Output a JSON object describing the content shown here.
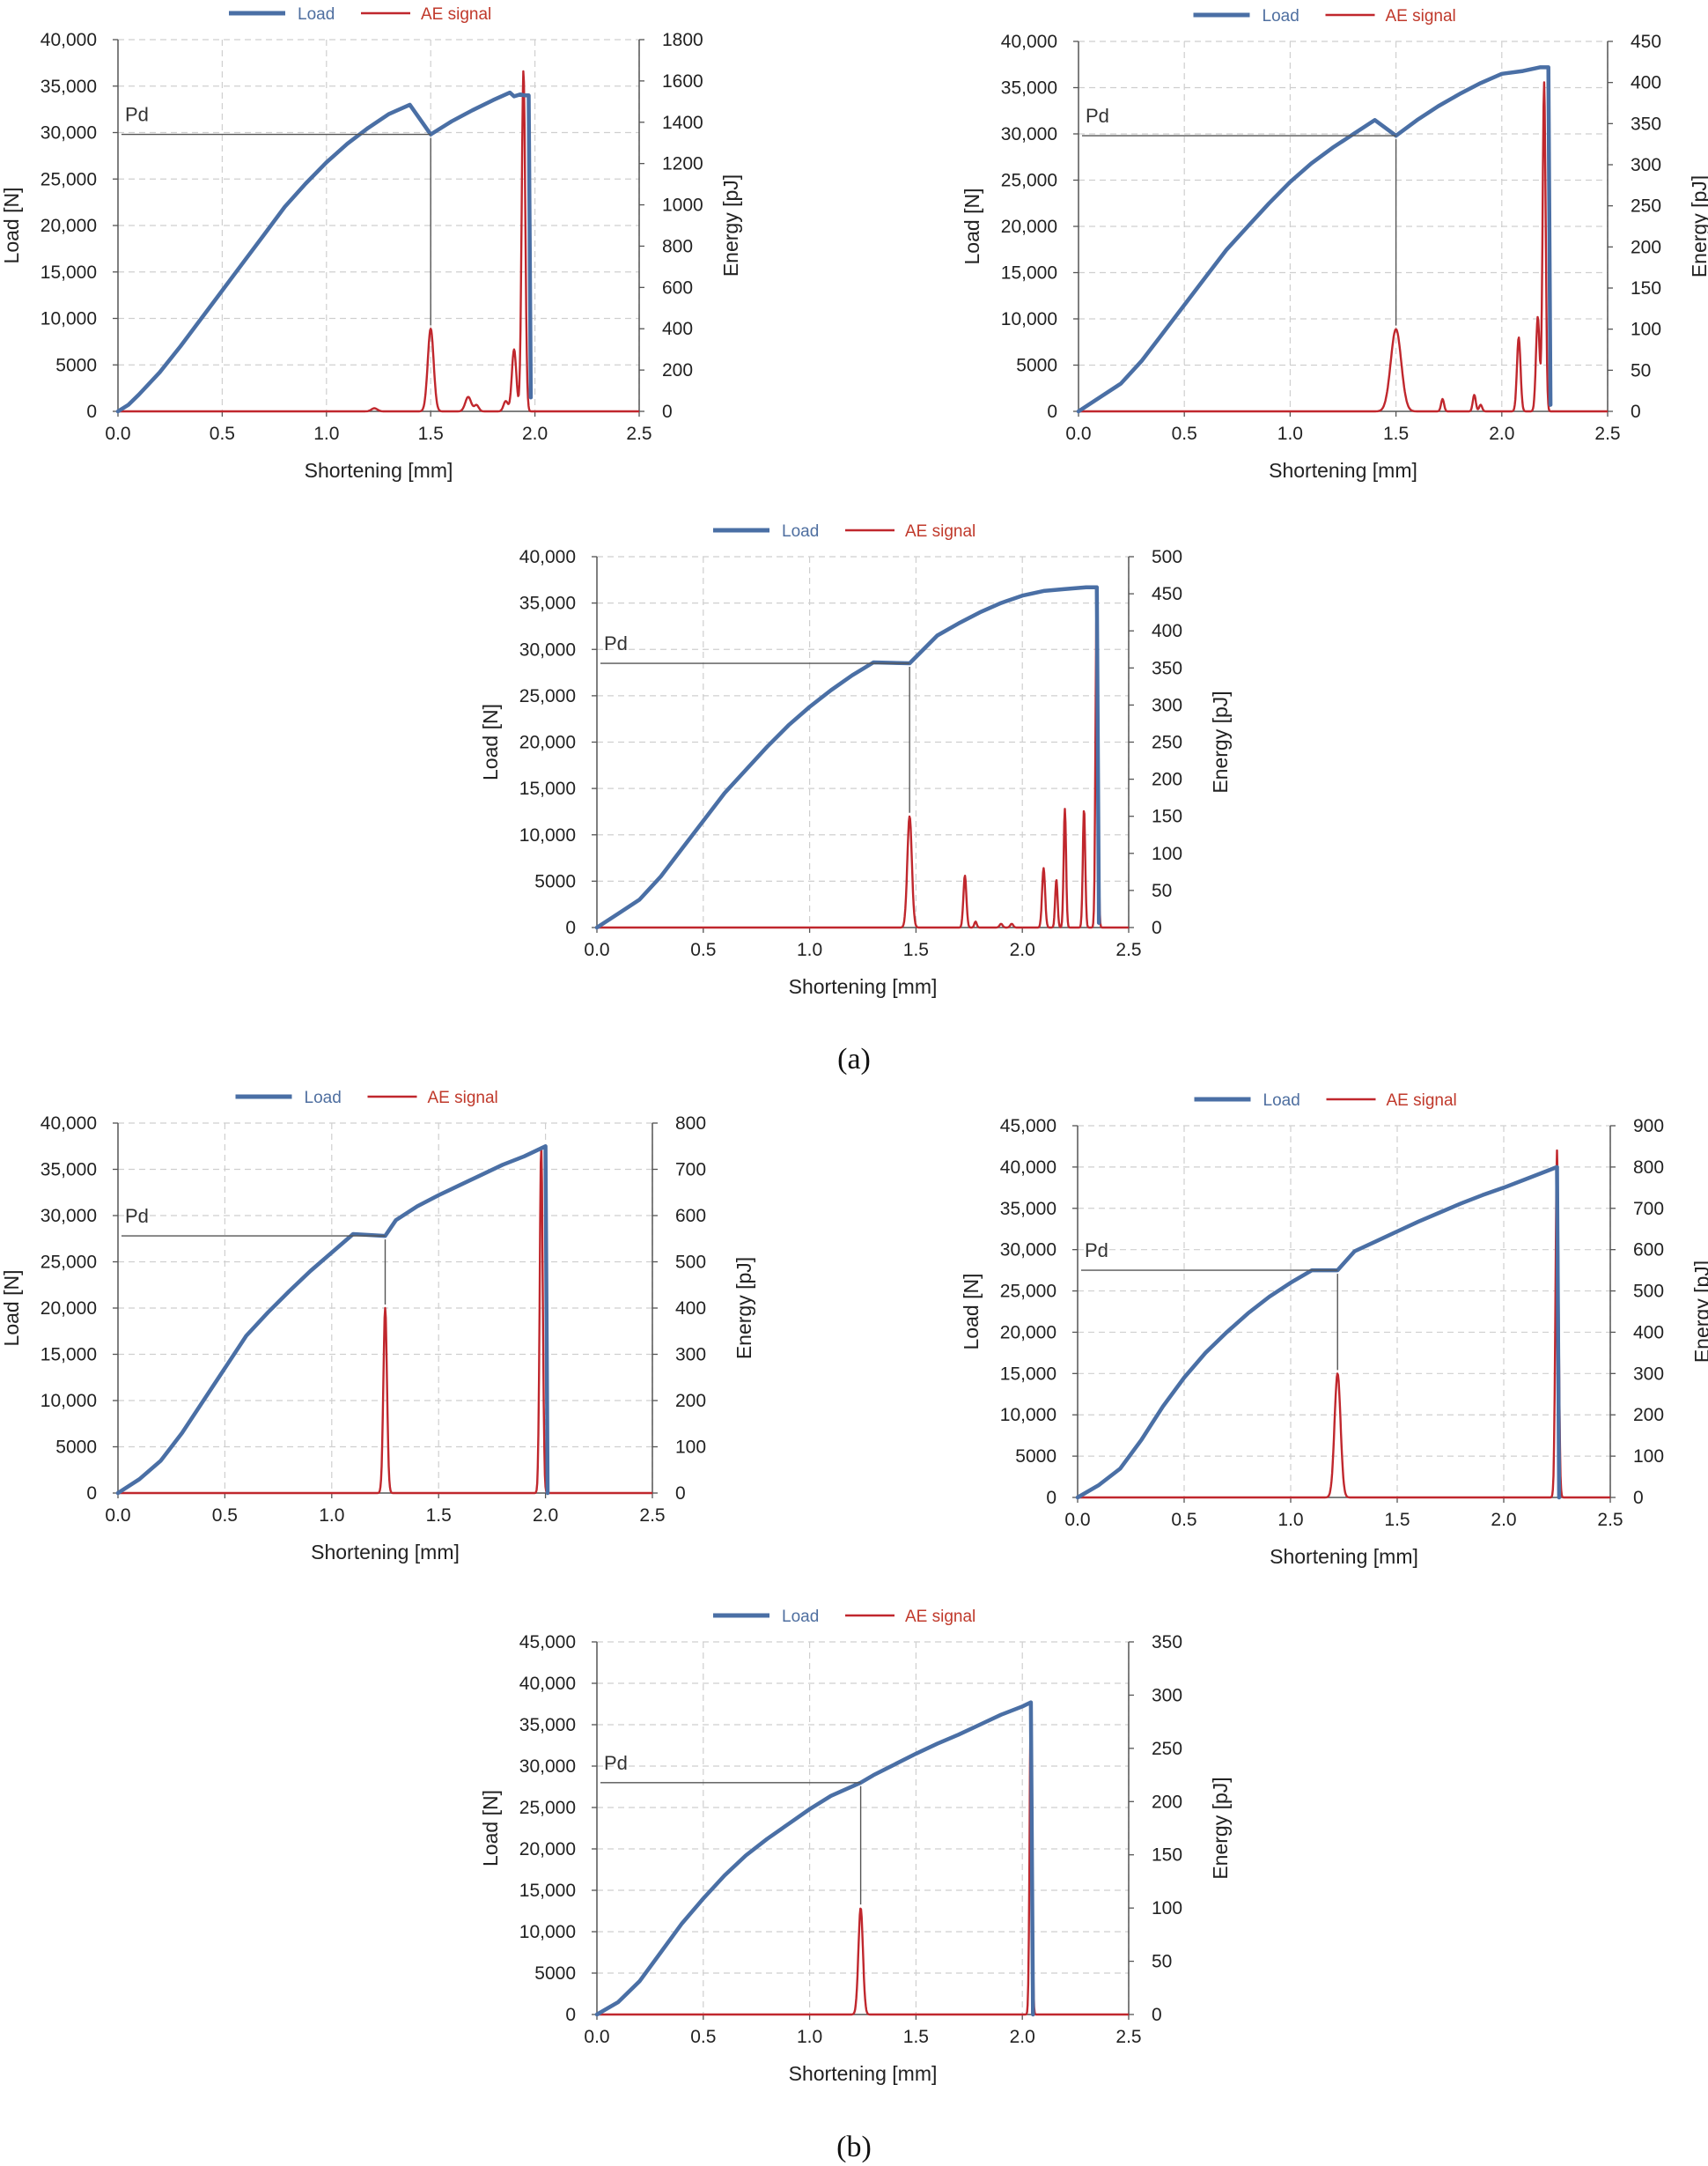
{
  "panel_labels": {
    "a": "(a)",
    "b": "(b)"
  },
  "colors": {
    "load": "#4a6fa5",
    "ae": "#c0272d",
    "grid": "#cfcfcf",
    "pd_line": "#555555",
    "axis": "#555555"
  },
  "chart_data": [
    {
      "type": "line",
      "panel": "a",
      "title": "",
      "legend": [
        "Load",
        "AE signal"
      ],
      "xlabel": "Shortening [mm]",
      "ylabel": "Load [N]",
      "y2label": "Energy [pJ]",
      "xlim": [
        0,
        2.5
      ],
      "ylim": [
        0,
        40000
      ],
      "y2lim": [
        0,
        1800
      ],
      "xticks": [
        "0.0",
        "0.5",
        "1.0",
        "1.5",
        "2.0",
        "2.5"
      ],
      "yticks": [
        "0",
        "5000",
        "10,000",
        "15,000",
        "20,000",
        "25,000",
        "30,000",
        "35,000",
        "40,000"
      ],
      "y2ticks": [
        "0",
        "200",
        "400",
        "600",
        "800",
        "1000",
        "1200",
        "1400",
        "1600",
        "1800"
      ],
      "pd_label": "Pd",
      "pd": {
        "x": 1.5,
        "y": 29800
      },
      "load": [
        [
          0,
          0
        ],
        [
          0.05,
          700
        ],
        [
          0.1,
          1800
        ],
        [
          0.2,
          4200
        ],
        [
          0.3,
          7000
        ],
        [
          0.4,
          10000
        ],
        [
          0.5,
          13000
        ],
        [
          0.6,
          16000
        ],
        [
          0.7,
          19000
        ],
        [
          0.8,
          22000
        ],
        [
          0.9,
          24500
        ],
        [
          1.0,
          26800
        ],
        [
          1.1,
          28800
        ],
        [
          1.2,
          30500
        ],
        [
          1.3,
          32000
        ],
        [
          1.4,
          33000
        ],
        [
          1.5,
          29800
        ],
        [
          1.6,
          31200
        ],
        [
          1.7,
          32400
        ],
        [
          1.8,
          33500
        ],
        [
          1.88,
          34300
        ],
        [
          1.9,
          33900
        ],
        [
          1.93,
          34100
        ],
        [
          1.95,
          34000
        ],
        [
          1.97,
          34000
        ],
        [
          1.98,
          1500
        ]
      ],
      "ae_peaks": [
        [
          1.23,
          15,
          0.02
        ],
        [
          1.5,
          400,
          0.02
        ],
        [
          1.68,
          70,
          0.02
        ],
        [
          1.72,
          30,
          0.015
        ],
        [
          1.86,
          50,
          0.015
        ],
        [
          1.9,
          300,
          0.015
        ],
        [
          1.945,
          1650,
          0.012
        ]
      ]
    },
    {
      "type": "line",
      "panel": "a",
      "title": "",
      "legend": [
        "Load",
        "AE signal"
      ],
      "xlabel": "Shortening [mm]",
      "ylabel": "Load [N]",
      "y2label": "Energy [pJ]",
      "xlim": [
        0,
        2.5
      ],
      "ylim": [
        0,
        40000
      ],
      "y2lim": [
        0,
        450
      ],
      "xticks": [
        "0.0",
        "0.5",
        "1.0",
        "1.5",
        "2.0",
        "2.5"
      ],
      "yticks": [
        "0",
        "5000",
        "10,000",
        "15,000",
        "20,000",
        "25,000",
        "30,000",
        "35,000",
        "40,000"
      ],
      "y2ticks": [
        "0",
        "50",
        "100",
        "150",
        "200",
        "250",
        "300",
        "350",
        "400",
        "450"
      ],
      "pd_label": "Pd",
      "pd": {
        "x": 1.5,
        "y": 29800
      },
      "load": [
        [
          0,
          0
        ],
        [
          0.1,
          1500
        ],
        [
          0.2,
          3000
        ],
        [
          0.3,
          5500
        ],
        [
          0.4,
          8500
        ],
        [
          0.5,
          11500
        ],
        [
          0.6,
          14500
        ],
        [
          0.7,
          17500
        ],
        [
          0.8,
          20000
        ],
        [
          0.9,
          22500
        ],
        [
          1.0,
          24800
        ],
        [
          1.1,
          26800
        ],
        [
          1.2,
          28500
        ],
        [
          1.3,
          30000
        ],
        [
          1.4,
          31500
        ],
        [
          1.5,
          29800
        ],
        [
          1.6,
          31500
        ],
        [
          1.7,
          33000
        ],
        [
          1.8,
          34300
        ],
        [
          1.9,
          35500
        ],
        [
          2.0,
          36500
        ],
        [
          2.1,
          36800
        ],
        [
          2.18,
          37200
        ],
        [
          2.22,
          37200
        ],
        [
          2.23,
          700
        ]
      ],
      "ae_peaks": [
        [
          1.5,
          100,
          0.035
        ],
        [
          1.72,
          15,
          0.01
        ],
        [
          1.87,
          20,
          0.01
        ],
        [
          1.9,
          8,
          0.01
        ],
        [
          2.08,
          90,
          0.012
        ],
        [
          2.17,
          115,
          0.012
        ],
        [
          2.2,
          400,
          0.01
        ]
      ]
    },
    {
      "type": "line",
      "panel": "a",
      "title": "",
      "legend": [
        "Load",
        "AE signal"
      ],
      "xlabel": "Shortening [mm]",
      "ylabel": "Load [N]",
      "y2label": "Energy [pJ]",
      "xlim": [
        0,
        2.5
      ],
      "ylim": [
        0,
        40000
      ],
      "y2lim": [
        0,
        500
      ],
      "xticks": [
        "0.0",
        "0.5",
        "1.0",
        "1.5",
        "2.0",
        "2.5"
      ],
      "yticks": [
        "0",
        "5000",
        "10,000",
        "15,000",
        "20,000",
        "25,000",
        "30,000",
        "35,000",
        "40,000"
      ],
      "y2ticks": [
        "0",
        "50",
        "100",
        "150",
        "200",
        "250",
        "300",
        "350",
        "400",
        "450",
        "500"
      ],
      "pd_label": "Pd",
      "pd": {
        "x": 1.47,
        "y": 28500
      },
      "load": [
        [
          0,
          0
        ],
        [
          0.1,
          1500
        ],
        [
          0.2,
          3000
        ],
        [
          0.3,
          5500
        ],
        [
          0.4,
          8500
        ],
        [
          0.5,
          11500
        ],
        [
          0.6,
          14500
        ],
        [
          0.7,
          17000
        ],
        [
          0.8,
          19500
        ],
        [
          0.9,
          21800
        ],
        [
          1.0,
          23800
        ],
        [
          1.1,
          25600
        ],
        [
          1.2,
          27200
        ],
        [
          1.3,
          28600
        ],
        [
          1.47,
          28500
        ],
        [
          1.6,
          31500
        ],
        [
          1.7,
          32800
        ],
        [
          1.8,
          34000
        ],
        [
          1.9,
          35000
        ],
        [
          2.0,
          35800
        ],
        [
          2.1,
          36300
        ],
        [
          2.2,
          36500
        ],
        [
          2.25,
          36600
        ],
        [
          2.3,
          36700
        ],
        [
          2.35,
          36700
        ],
        [
          2.36,
          500
        ]
      ],
      "ae_peaks": [
        [
          1.47,
          150,
          0.015
        ],
        [
          1.73,
          70,
          0.01
        ],
        [
          1.78,
          8,
          0.008
        ],
        [
          1.9,
          5,
          0.01
        ],
        [
          1.95,
          5,
          0.01
        ],
        [
          2.1,
          80,
          0.01
        ],
        [
          2.16,
          65,
          0.008
        ],
        [
          2.2,
          160,
          0.008
        ],
        [
          2.29,
          160,
          0.008
        ],
        [
          2.35,
          460,
          0.008
        ]
      ]
    },
    {
      "type": "line",
      "panel": "b",
      "title": "",
      "legend": [
        "Load",
        "AE signal"
      ],
      "xlabel": "Shortening [mm]",
      "ylabel": "Load [N]",
      "y2label": "Energy [pJ]",
      "xlim": [
        0,
        2.5
      ],
      "ylim": [
        0,
        40000
      ],
      "y2lim": [
        0,
        800
      ],
      "xticks": [
        "0.0",
        "0.5",
        "1.0",
        "1.5",
        "2.0",
        "2.5"
      ],
      "yticks": [
        "0",
        "5000",
        "10,000",
        "15,000",
        "20,000",
        "25,000",
        "30,000",
        "35,000",
        "40,000"
      ],
      "y2ticks": [
        "0",
        "100",
        "200",
        "300",
        "400",
        "500",
        "600",
        "700",
        "800"
      ],
      "pd_label": "Pd",
      "pd": {
        "x": 1.25,
        "y": 27800
      },
      "load": [
        [
          0,
          0
        ],
        [
          0.1,
          1500
        ],
        [
          0.2,
          3500
        ],
        [
          0.3,
          6500
        ],
        [
          0.4,
          10000
        ],
        [
          0.5,
          13500
        ],
        [
          0.6,
          17000
        ],
        [
          0.7,
          19500
        ],
        [
          0.8,
          21800
        ],
        [
          0.9,
          24000
        ],
        [
          1.0,
          26000
        ],
        [
          1.1,
          28000
        ],
        [
          1.25,
          27800
        ],
        [
          1.3,
          29500
        ],
        [
          1.4,
          31000
        ],
        [
          1.5,
          32200
        ],
        [
          1.6,
          33300
        ],
        [
          1.7,
          34400
        ],
        [
          1.8,
          35500
        ],
        [
          1.9,
          36400
        ],
        [
          2.0,
          37500
        ],
        [
          2.01,
          0
        ]
      ],
      "ae_peaks": [
        [
          1.25,
          400,
          0.012
        ],
        [
          1.98,
          750,
          0.01
        ]
      ]
    },
    {
      "type": "line",
      "panel": "b",
      "title": "",
      "legend": [
        "Load",
        "AE signal"
      ],
      "xlabel": "Shortening [mm]",
      "ylabel": "Load [N]",
      "y2label": "Energy [pJ]",
      "xlim": [
        0,
        2.5
      ],
      "ylim": [
        0,
        45000
      ],
      "y2lim": [
        0,
        900
      ],
      "xticks": [
        "0.0",
        "0.5",
        "1.0",
        "1.5",
        "2.0",
        "2.5"
      ],
      "yticks": [
        "0",
        "5000",
        "10,000",
        "15,000",
        "20,000",
        "25,000",
        "30,000",
        "35,000",
        "40,000",
        "45,000"
      ],
      "y2ticks": [
        "0",
        "100",
        "200",
        "300",
        "400",
        "500",
        "600",
        "700",
        "800",
        "900"
      ],
      "pd_label": "Pd",
      "pd": {
        "x": 1.22,
        "y": 27500
      },
      "load": [
        [
          0,
          0
        ],
        [
          0.1,
          1500
        ],
        [
          0.2,
          3500
        ],
        [
          0.3,
          7000
        ],
        [
          0.4,
          11000
        ],
        [
          0.5,
          14500
        ],
        [
          0.6,
          17500
        ],
        [
          0.7,
          20000
        ],
        [
          0.8,
          22300
        ],
        [
          0.9,
          24300
        ],
        [
          1.0,
          26000
        ],
        [
          1.1,
          27500
        ],
        [
          1.22,
          27500
        ],
        [
          1.3,
          29800
        ],
        [
          1.4,
          31000
        ],
        [
          1.5,
          32200
        ],
        [
          1.6,
          33400
        ],
        [
          1.7,
          34500
        ],
        [
          1.8,
          35600
        ],
        [
          1.9,
          36600
        ],
        [
          2.0,
          37500
        ],
        [
          2.1,
          38500
        ],
        [
          2.2,
          39500
        ],
        [
          2.25,
          40000
        ],
        [
          2.26,
          0
        ]
      ],
      "ae_peaks": [
        [
          1.22,
          300,
          0.02
        ],
        [
          2.25,
          840,
          0.01
        ]
      ]
    },
    {
      "type": "line",
      "panel": "b",
      "title": "",
      "legend": [
        "Load",
        "AE signal"
      ],
      "xlabel": "Shortening [mm]",
      "ylabel": "Load [N]",
      "y2label": "Energy [pJ]",
      "xlim": [
        0,
        2.5
      ],
      "ylim": [
        0,
        45000
      ],
      "y2lim": [
        0,
        350
      ],
      "xticks": [
        "0.0",
        "0.5",
        "1.0",
        "1.5",
        "2.0",
        "2.5"
      ],
      "yticks": [
        "0",
        "5000",
        "10,000",
        "15,000",
        "20,000",
        "25,000",
        "30,000",
        "35,000",
        "40,000",
        "45,000"
      ],
      "y2ticks": [
        "0",
        "50",
        "100",
        "150",
        "200",
        "250",
        "300",
        "350"
      ],
      "pd_label": "Pd",
      "pd": {
        "x": 1.24,
        "y": 28000
      },
      "load": [
        [
          0,
          0
        ],
        [
          0.1,
          1500
        ],
        [
          0.2,
          4000
        ],
        [
          0.3,
          7500
        ],
        [
          0.4,
          11000
        ],
        [
          0.5,
          14000
        ],
        [
          0.6,
          16800
        ],
        [
          0.7,
          19200
        ],
        [
          0.8,
          21200
        ],
        [
          0.9,
          23000
        ],
        [
          1.0,
          24800
        ],
        [
          1.1,
          26400
        ],
        [
          1.24,
          28000
        ],
        [
          1.3,
          28900
        ],
        [
          1.4,
          30200
        ],
        [
          1.5,
          31500
        ],
        [
          1.6,
          32700
        ],
        [
          1.7,
          33800
        ],
        [
          1.8,
          35000
        ],
        [
          1.9,
          36200
        ],
        [
          2.0,
          37200
        ],
        [
          2.04,
          37700
        ],
        [
          2.05,
          0
        ]
      ],
      "ae_peaks": [
        [
          1.24,
          100,
          0.015
        ],
        [
          2.04,
          295,
          0.008
        ]
      ]
    }
  ]
}
